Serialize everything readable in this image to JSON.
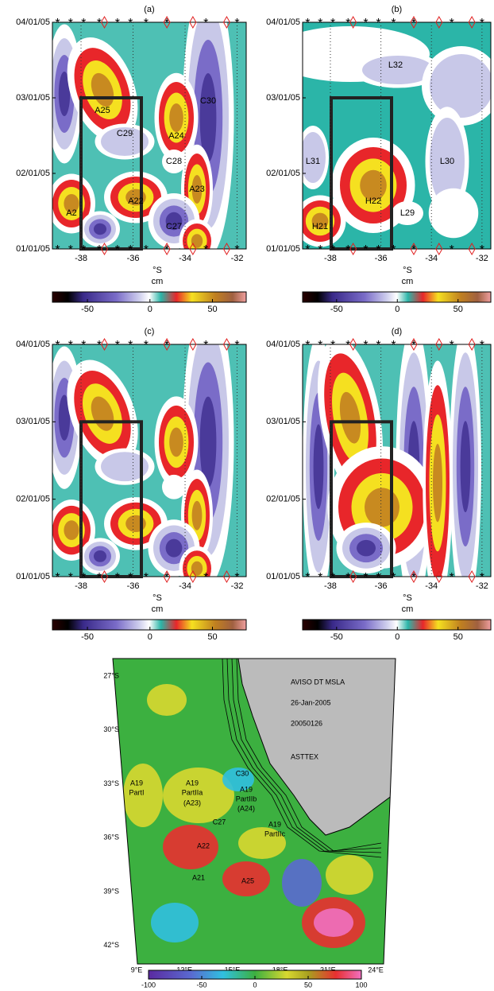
{
  "panels": [
    {
      "label": "(a)",
      "annotations": [
        "A25",
        "C29",
        "A24",
        "C30",
        "C28",
        "A23",
        "A22",
        "A2",
        "C27"
      ]
    },
    {
      "label": "(b)",
      "annotations": [
        "L32",
        "L31",
        "L30",
        "H22",
        "L29",
        "H21"
      ]
    },
    {
      "label": "(c)"
    },
    {
      "label": "(d)"
    }
  ],
  "xlim": [
    -39.1,
    -31.65
  ],
  "xticks": [
    -38,
    -36,
    -34,
    -32
  ],
  "xlabel": "°S",
  "yticks": [
    "01/01/05",
    "02/01/05",
    "03/01/05",
    "04/01/05"
  ],
  "colorbar": {
    "label": "cm",
    "lim": [
      -78,
      77
    ],
    "ticks": [
      -50,
      0,
      50
    ]
  },
  "stations": {
    "asterisk": [
      -38.9,
      -38.4,
      -37.9,
      -37.3,
      -36.6,
      -36.1,
      -35.5,
      -34.7,
      -33.2,
      -32.0
    ],
    "diamond": [
      -37.1,
      -34.7,
      -33.7,
      -32.4
    ]
  },
  "map": {
    "texts": [
      "AVISO DT MSLA",
      "26-Jan-2005",
      "20050126",
      "ASTTEX",
      "A19",
      "PartI",
      "A19",
      "PartIIa",
      "(A23)",
      "A19",
      "PartIIb",
      "(A24)",
      "C30",
      "A19",
      "PartIIc",
      "C27",
      "A22",
      "A21",
      "A25"
    ],
    "lat_ticks": [
      {
        "value": 27,
        "label": "27°S"
      },
      {
        "value": 30,
        "label": "30°S"
      },
      {
        "value": 33,
        "label": "33°S"
      },
      {
        "value": 36,
        "label": "36°S"
      },
      {
        "value": 39,
        "label": "39°S"
      },
      {
        "value": 42,
        "label": "42°S"
      }
    ],
    "lon_ticks": [
      {
        "value": 9,
        "label": "9°E"
      },
      {
        "value": 12,
        "label": "12°E"
      },
      {
        "value": 15,
        "label": "15°E"
      },
      {
        "value": 18,
        "label": "18°E"
      },
      {
        "value": 21,
        "label": "21°E"
      },
      {
        "value": 24,
        "label": "24°E"
      }
    ],
    "colorbar": {
      "lim": [
        -100,
        100
      ],
      "ticks": [
        -100,
        -50,
        0,
        50,
        100
      ]
    }
  }
}
